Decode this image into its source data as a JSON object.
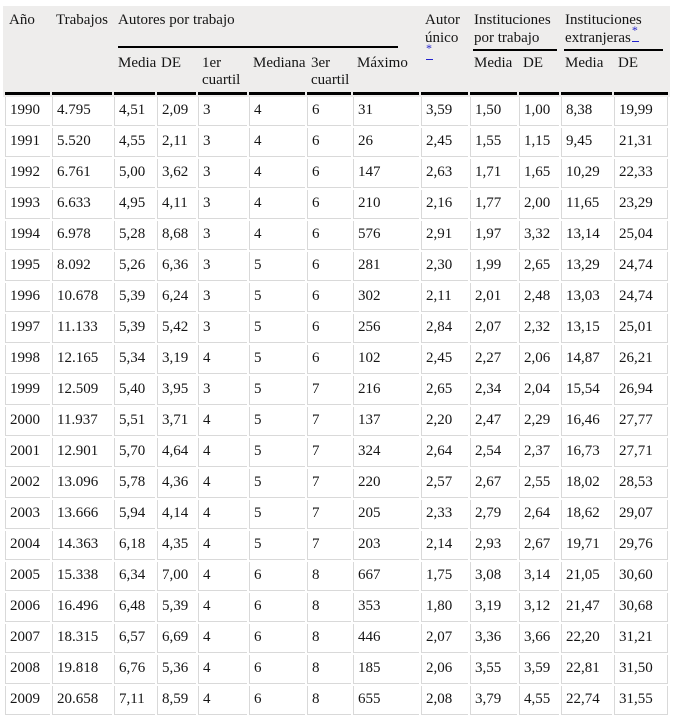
{
  "colors": {
    "header_bg": "#eeedec",
    "grid_line": "#d9d9d9",
    "header_rule": "#000000",
    "footnote_link": "#2222cc",
    "row_bg": "#ffffff",
    "text": "#151515"
  },
  "chart_data": {
    "type": "table",
    "header": {
      "ano": "Año",
      "trabajos": "Trabajos",
      "autores_group": "Autores por trabajo",
      "autor_unico": "Autor único",
      "autor_unico_marker": "*",
      "inst_por_trabajo": "Instituciones por trabajo",
      "inst_extranjeras": "Instituciones extranjeras",
      "inst_extranjeras_marker": "*",
      "sub": [
        "Media",
        "DE",
        "1er cuartil",
        "Mediana",
        "3er cuartil",
        "Máximo",
        "Media",
        "DE",
        "Media",
        "DE"
      ]
    },
    "column_groups": [
      {
        "label": "Año",
        "colspan": 1
      },
      {
        "label": "Trabajos",
        "colspan": 1
      },
      {
        "label": "Autores por trabajo",
        "colspan": 6
      },
      {
        "label": "Autor único*",
        "colspan": 1
      },
      {
        "label": "Instituciones por trabajo",
        "colspan": 2
      },
      {
        "label": "Instituciones extranjeras*",
        "colspan": 2
      }
    ],
    "rows": [
      [
        "1990",
        "4.795",
        "4,51",
        "2,09",
        "3",
        "4",
        "6",
        "31",
        "3,59",
        "1,50",
        "1,00",
        "8,38",
        "19,99"
      ],
      [
        "1991",
        "5.520",
        "4,55",
        "2,11",
        "3",
        "4",
        "6",
        "26",
        "2,45",
        "1,55",
        "1,15",
        "9,45",
        "21,31"
      ],
      [
        "1992",
        "6.761",
        "5,00",
        "3,62",
        "3",
        "4",
        "6",
        "147",
        "2,63",
        "1,71",
        "1,65",
        "10,29",
        "22,33"
      ],
      [
        "1993",
        "6.633",
        "4,95",
        "4,11",
        "3",
        "4",
        "6",
        "210",
        "2,16",
        "1,77",
        "2,00",
        "11,65",
        "23,29"
      ],
      [
        "1994",
        "6.978",
        "5,28",
        "8,68",
        "3",
        "4",
        "6",
        "576",
        "2,91",
        "1,97",
        "3,32",
        "13,14",
        "25,04"
      ],
      [
        "1995",
        "8.092",
        "5,26",
        "6,36",
        "3",
        "5",
        "6",
        "281",
        "2,30",
        "1,99",
        "2,65",
        "13,29",
        "24,74"
      ],
      [
        "1996",
        "10.678",
        "5,39",
        "6,24",
        "3",
        "5",
        "6",
        "302",
        "2,11",
        "2,01",
        "2,48",
        "13,03",
        "24,74"
      ],
      [
        "1997",
        "11.133",
        "5,39",
        "5,42",
        "3",
        "5",
        "6",
        "256",
        "2,84",
        "2,07",
        "2,32",
        "13,15",
        "25,01"
      ],
      [
        "1998",
        "12.165",
        "5,34",
        "3,19",
        "4",
        "5",
        "6",
        "102",
        "2,45",
        "2,27",
        "2,06",
        "14,87",
        "26,21"
      ],
      [
        "1999",
        "12.509",
        "5,40",
        "3,95",
        "3",
        "5",
        "7",
        "216",
        "2,65",
        "2,34",
        "2,04",
        "15,54",
        "26,94"
      ],
      [
        "2000",
        "11.937",
        "5,51",
        "3,71",
        "4",
        "5",
        "7",
        "137",
        "2,20",
        "2,47",
        "2,29",
        "16,46",
        "27,77"
      ],
      [
        "2001",
        "12.901",
        "5,70",
        "4,64",
        "4",
        "5",
        "7",
        "324",
        "2,64",
        "2,54",
        "2,37",
        "16,73",
        "27,71"
      ],
      [
        "2002",
        "13.096",
        "5,78",
        "4,36",
        "4",
        "5",
        "7",
        "220",
        "2,57",
        "2,67",
        "2,55",
        "18,02",
        "28,53"
      ],
      [
        "2003",
        "13.666",
        "5,94",
        "4,14",
        "4",
        "5",
        "7",
        "205",
        "2,33",
        "2,79",
        "2,64",
        "18,62",
        "29,07"
      ],
      [
        "2004",
        "14.363",
        "6,18",
        "4,35",
        "4",
        "5",
        "7",
        "203",
        "2,14",
        "2,93",
        "2,67",
        "19,71",
        "29,76"
      ],
      [
        "2005",
        "15.338",
        "6,34",
        "7,00",
        "4",
        "6",
        "8",
        "667",
        "1,75",
        "3,08",
        "3,14",
        "21,05",
        "30,60"
      ],
      [
        "2006",
        "16.496",
        "6,48",
        "5,39",
        "4",
        "6",
        "8",
        "353",
        "1,80",
        "3,19",
        "3,12",
        "21,47",
        "30,68"
      ],
      [
        "2007",
        "18.315",
        "6,57",
        "6,69",
        "4",
        "6",
        "8",
        "446",
        "2,07",
        "3,36",
        "3,66",
        "22,20",
        "31,21"
      ],
      [
        "2008",
        "19.818",
        "6,76",
        "5,36",
        "4",
        "6",
        "8",
        "185",
        "2,06",
        "3,55",
        "3,59",
        "22,81",
        "31,50"
      ],
      [
        "2009",
        "20.658",
        "7,11",
        "8,59",
        "4",
        "6",
        "8",
        "655",
        "2,08",
        "3,79",
        "4,55",
        "22,74",
        "31,55"
      ]
    ]
  }
}
